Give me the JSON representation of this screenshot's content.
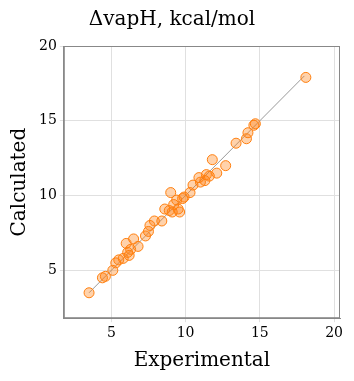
{
  "chart_data": {
    "type": "scatter",
    "title": "ΔvapH, kcal/mol",
    "x_label": "Experimental",
    "y_label": "Calculated",
    "xlim": [
      1.8,
      20.4
    ],
    "ylim": [
      1.8,
      20
    ],
    "xticks": [
      5,
      10,
      15,
      20
    ],
    "yticks": [
      5,
      10,
      15,
      20
    ],
    "grid": true,
    "series": [
      {
        "type": "scatter",
        "color": "#ff7f0e",
        "marker": "circle",
        "x": [
          3.5,
          4.4,
          4.6,
          5.1,
          5.3,
          5.5,
          5.8,
          6.0,
          6.1,
          6.2,
          6.3,
          6.5,
          6.8,
          7.3,
          7.5,
          7.6,
          7.9,
          8.4,
          8.6,
          8.9,
          9.0,
          9.1,
          9.2,
          9.4,
          9.5,
          9.6,
          9.8,
          9.9,
          10.3,
          10.5,
          10.9,
          11.0,
          11.3,
          11.4,
          11.6,
          11.8,
          12.1,
          12.7,
          13.4,
          14.1,
          14.2,
          14.6,
          14.7,
          18.1
        ],
        "values": [
          3.5,
          4.5,
          4.6,
          5.0,
          5.5,
          5.7,
          5.8,
          6.8,
          6.2,
          6.0,
          6.4,
          7.1,
          6.6,
          7.3,
          7.6,
          8.0,
          8.3,
          8.3,
          9.1,
          9.0,
          10.2,
          8.9,
          9.4,
          9.7,
          9.1,
          8.9,
          9.8,
          9.9,
          10.2,
          10.7,
          11.2,
          10.9,
          11.0,
          11.4,
          11.3,
          12.4,
          11.5,
          12.0,
          13.5,
          13.8,
          14.2,
          14.7,
          14.8,
          17.9
        ]
      },
      {
        "type": "line",
        "color": "#999999",
        "line_style": "solid",
        "x": [
          3.5,
          18
        ],
        "values": [
          3.5,
          18
        ]
      }
    ]
  }
}
